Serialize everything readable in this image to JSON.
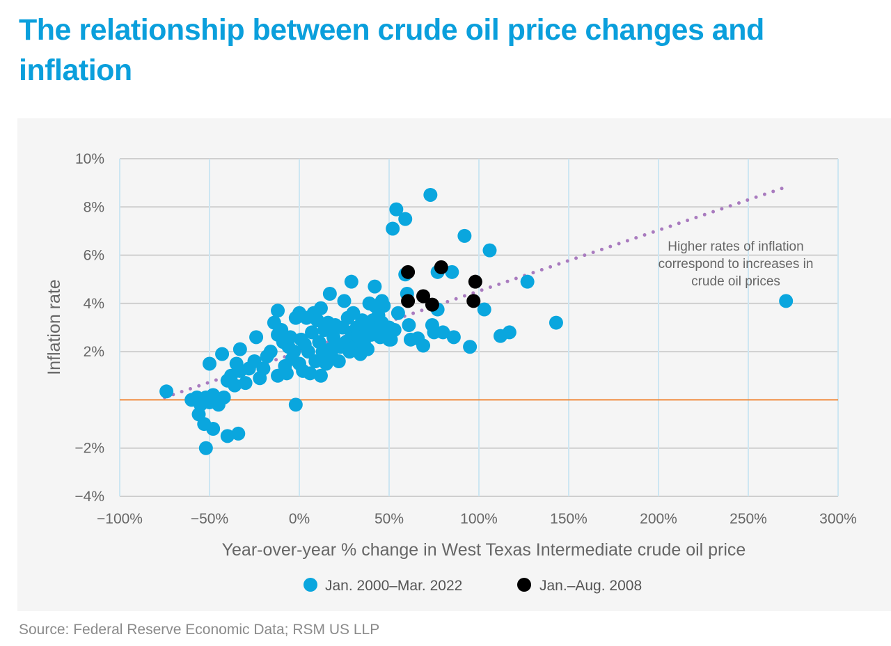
{
  "title": "The relationship between crude oil price changes and inflation",
  "source": "Source: Federal Reserve Economic Data; RSM US LLP",
  "chart_data": {
    "type": "scatter",
    "xlabel": "Year-over-year % change in West Texas Intermediate crude oil price",
    "ylabel": "Inflation rate",
    "xlim": [
      -100,
      300
    ],
    "ylim": [
      -4,
      10
    ],
    "x_ticks": [
      -100,
      -50,
      0,
      50,
      100,
      150,
      200,
      250,
      300
    ],
    "x_tick_labels": [
      "−100%",
      "−50%",
      "0%",
      "50%",
      "100%",
      "150%",
      "200%",
      "250%",
      "300%"
    ],
    "y_ticks": [
      10,
      8,
      6,
      4,
      2,
      -2,
      -4
    ],
    "y_tick_labels": [
      "10%",
      "8%",
      "6%",
      "4%",
      "2%",
      "−2%",
      "−4%"
    ],
    "grid": true,
    "zero_line_color": "#f08a3c",
    "trendline": {
      "style": "dotted",
      "color": "#a97bbf",
      "from": [
        -75,
        0.1
      ],
      "to": [
        270,
        8.8
      ]
    },
    "annotation": [
      "Higher rates of inflation",
      "correspond to increases in",
      "crude oil prices"
    ],
    "legend_placement": "bottom",
    "series": [
      {
        "name": "Jan. 2000–Mar. 2022",
        "color": "#0aa6de",
        "points": [
          [
            -74,
            0.35
          ],
          [
            -60,
            0
          ],
          [
            -56,
            -0.6
          ],
          [
            -53,
            -1.0
          ],
          [
            -52,
            -2.0
          ],
          [
            -48,
            -1.2
          ],
          [
            -40,
            -1.5
          ],
          [
            -34,
            -1.4
          ],
          [
            -50,
            1.5
          ],
          [
            -43,
            1.9
          ],
          [
            -33,
            2.1
          ],
          [
            -24,
            2.6
          ],
          [
            -12,
            3.7
          ],
          [
            -2,
            -0.2
          ],
          [
            0,
            3.6
          ],
          [
            17,
            4.4
          ],
          [
            29,
            4.9
          ],
          [
            42,
            4.7
          ],
          [
            54,
            7.9
          ],
          [
            52,
            7.1
          ],
          [
            59,
            7.5
          ],
          [
            73,
            8.5
          ],
          [
            92,
            6.8
          ],
          [
            106,
            6.2
          ],
          [
            127,
            4.9
          ],
          [
            143,
            3.2
          ],
          [
            271,
            4.1
          ],
          [
            117,
            2.8
          ],
          [
            112,
            2.65
          ],
          [
            103,
            3.75
          ],
          [
            95,
            2.2
          ],
          [
            86,
            2.6
          ],
          [
            85,
            5.3
          ],
          [
            77,
            5.3
          ],
          [
            77,
            3.75
          ],
          [
            80,
            2.8
          ],
          [
            69,
            2.25
          ],
          [
            60,
            4.4
          ],
          [
            59,
            5.2
          ],
          [
            55,
            3.6
          ],
          [
            61,
            3.1
          ],
          [
            62,
            2.5
          ],
          [
            74,
            3.1
          ],
          [
            75,
            2.8
          ],
          [
            66,
            2.55
          ],
          [
            51,
            2.5
          ],
          [
            47,
            3.9
          ],
          [
            46,
            4.1
          ],
          [
            -57,
            0.1
          ],
          [
            -55,
            -0.2
          ],
          [
            -52,
            0.1
          ],
          [
            -50,
            -0.1
          ],
          [
            -48,
            0.2
          ],
          [
            -45,
            -0.2
          ],
          [
            -42,
            0.1
          ],
          [
            -40,
            0.8
          ],
          [
            -38,
            1.0
          ],
          [
            -36,
            0.6
          ],
          [
            -35,
            1.5
          ],
          [
            -33,
            1.2
          ],
          [
            -30,
            0.7
          ],
          [
            -28,
            1.3
          ],
          [
            -25,
            1.6
          ],
          [
            -22,
            0.9
          ],
          [
            -20,
            1.3
          ],
          [
            -18,
            1.8
          ],
          [
            -16,
            2.0
          ],
          [
            -14,
            3.2
          ],
          [
            -12,
            2.7
          ],
          [
            -12,
            1.0
          ],
          [
            -10,
            2.9
          ],
          [
            -9,
            2.4
          ],
          [
            -8,
            1.4
          ],
          [
            -7,
            1.1
          ],
          [
            -6,
            2.2
          ],
          [
            -5,
            2.6
          ],
          [
            -4,
            1.7
          ],
          [
            -3,
            2.0
          ],
          [
            -2,
            3.4
          ],
          [
            0,
            1.5
          ],
          [
            1,
            2.5
          ],
          [
            2,
            1.2
          ],
          [
            3,
            2.3
          ],
          [
            4,
            3.4
          ],
          [
            5,
            2.0
          ],
          [
            6,
            1.1
          ],
          [
            7,
            2.8
          ],
          [
            8,
            3.6
          ],
          [
            9,
            1.6
          ],
          [
            10,
            3.3
          ],
          [
            11,
            2.4
          ],
          [
            12,
            3.8
          ],
          [
            12,
            1.0
          ],
          [
            13,
            2.0
          ],
          [
            14,
            2.9
          ],
          [
            15,
            1.5
          ],
          [
            16,
            3.2
          ],
          [
            17,
            2.1
          ],
          [
            18,
            1.8
          ],
          [
            19,
            2.6
          ],
          [
            20,
            3.1
          ],
          [
            22,
            1.6
          ],
          [
            23,
            2.2
          ],
          [
            24,
            3.0
          ],
          [
            25,
            4.1
          ],
          [
            26,
            2.4
          ],
          [
            27,
            3.4
          ],
          [
            28,
            2.0
          ],
          [
            29,
            2.8
          ],
          [
            30,
            3.6
          ],
          [
            31,
            2.2
          ],
          [
            32,
            3.0
          ],
          [
            33,
            2.6
          ],
          [
            34,
            1.9
          ],
          [
            35,
            3.3
          ],
          [
            36,
            2.4
          ],
          [
            37,
            3.0
          ],
          [
            38,
            2.1
          ],
          [
            39,
            4.0
          ],
          [
            40,
            2.7
          ],
          [
            41,
            3.3
          ],
          [
            42,
            3.9
          ],
          [
            43,
            2.9
          ],
          [
            44,
            3.5
          ],
          [
            45,
            2.6
          ],
          [
            46,
            3.2
          ],
          [
            48,
            2.7
          ],
          [
            50,
            3.0
          ],
          [
            50,
            2.5
          ],
          [
            53,
            2.9
          ]
        ]
      },
      {
        "name": "Jan.–Aug. 2008",
        "color": "#000000",
        "points": [
          [
            60.5,
            5.3
          ],
          [
            60.5,
            4.1
          ],
          [
            69,
            4.3
          ],
          [
            74,
            3.95
          ],
          [
            79,
            5.5
          ],
          [
            98,
            4.9
          ],
          [
            97,
            4.1
          ]
        ]
      }
    ]
  }
}
